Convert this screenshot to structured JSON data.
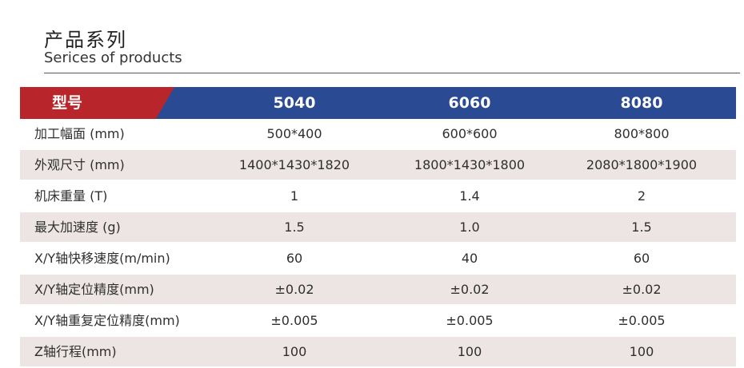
{
  "heading": {
    "title_cn": "产品系列",
    "title_en": "Serices of products"
  },
  "table": {
    "header": [
      "型号",
      "5040",
      "6060",
      "8080"
    ],
    "rows": [
      [
        "加工幅面 (mm)",
        "500*400",
        "600*600",
        "800*800"
      ],
      [
        "外观尺寸 (mm)",
        "1400*1430*1820",
        "1800*1430*1800",
        "2080*1800*1900"
      ],
      [
        "机床重量 (T)",
        "1",
        "1.4",
        "2"
      ],
      [
        "最大加速度 (g)",
        "1.5",
        "1.0",
        "1.5"
      ],
      [
        "X/Y轴快移速度(m/min)",
        "60",
        "40",
        "60"
      ],
      [
        "X/Y轴定位精度(mm)",
        "±0.02",
        "±0.02",
        "±0.02"
      ],
      [
        "X/Y轴重复定位精度(mm)",
        "±0.005",
        "±0.005",
        "±0.005"
      ],
      [
        "Z轴行程(mm)",
        "100",
        "100",
        "100"
      ]
    ]
  },
  "colors": {
    "header_blue": "#2a4a94",
    "header_red": "#b8252a",
    "row_alt": "#ece5e3"
  }
}
